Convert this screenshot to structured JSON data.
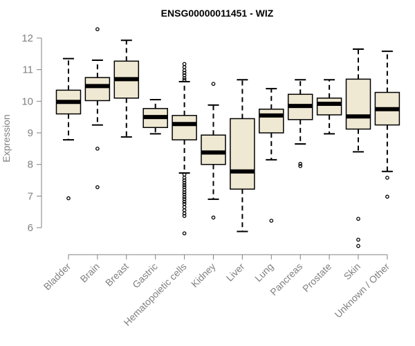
{
  "chart_data": {
    "type": "boxplot",
    "title": "ENSG00000011451 - WIZ",
    "xlabel": "",
    "ylabel": "Expression",
    "ylim": [
      5.5,
      12.4
    ],
    "yticks": [
      6,
      7,
      8,
      9,
      10,
      11,
      12
    ],
    "grid": false,
    "box_color": "#efe8d2",
    "categories": [
      "Bladder",
      "Brain",
      "Breast",
      "Gastric",
      "Hematopoietic cells",
      "Kidney",
      "Liver",
      "Lung",
      "Pancreas",
      "Prostate",
      "Skin",
      "Unknown / Other"
    ],
    "boxes": [
      {
        "category": "Bladder",
        "whisker_low": 8.78,
        "q1": 9.6,
        "median": 9.98,
        "q3": 10.35,
        "whisker_high": 11.35,
        "outliers": [
          6.93
        ]
      },
      {
        "category": "Brain",
        "whisker_low": 9.25,
        "q1": 10.02,
        "median": 10.48,
        "q3": 10.75,
        "whisker_high": 11.3,
        "outliers": [
          12.28,
          8.5,
          7.28
        ]
      },
      {
        "category": "Breast",
        "whisker_low": 8.87,
        "q1": 10.1,
        "median": 10.7,
        "q3": 11.27,
        "whisker_high": 11.93,
        "outliers": []
      },
      {
        "category": "Gastric",
        "whisker_low": 8.97,
        "q1": 9.17,
        "median": 9.5,
        "q3": 9.77,
        "whisker_high": 10.05,
        "outliers": []
      },
      {
        "category": "Hematopoietic cells",
        "whisker_low": 7.73,
        "q1": 8.78,
        "median": 9.28,
        "q3": 9.55,
        "whisker_high": 10.62,
        "outliers": [
          11.18,
          11.08,
          10.98,
          10.9,
          10.82,
          10.73,
          10.67,
          7.68,
          7.58,
          7.5,
          7.42,
          7.35,
          7.28,
          7.2,
          7.12,
          7.05,
          6.97,
          6.9,
          6.82,
          6.75,
          6.65,
          6.55,
          6.45,
          6.37,
          5.82
        ]
      },
      {
        "category": "Kidney",
        "whisker_low": 6.9,
        "q1": 8.0,
        "median": 8.38,
        "q3": 8.93,
        "whisker_high": 9.88,
        "outliers": [
          10.55,
          6.32
        ]
      },
      {
        "category": "Liver",
        "whisker_low": 5.88,
        "q1": 7.22,
        "median": 7.78,
        "q3": 9.45,
        "whisker_high": 10.68,
        "outliers": []
      },
      {
        "category": "Lung",
        "whisker_low": 8.15,
        "q1": 9.0,
        "median": 9.55,
        "q3": 9.75,
        "whisker_high": 10.4,
        "outliers": [
          6.22
        ]
      },
      {
        "category": "Pancreas",
        "whisker_low": 8.65,
        "q1": 9.42,
        "median": 9.85,
        "q3": 10.22,
        "whisker_high": 10.68,
        "outliers": [
          8.02,
          7.95
        ]
      },
      {
        "category": "Prostate",
        "whisker_low": 8.97,
        "q1": 9.57,
        "median": 9.92,
        "q3": 10.1,
        "whisker_high": 10.68,
        "outliers": []
      },
      {
        "category": "Skin",
        "whisker_low": 8.4,
        "q1": 9.12,
        "median": 9.52,
        "q3": 10.7,
        "whisker_high": 11.65,
        "outliers": [
          6.28,
          5.62,
          5.42
        ]
      },
      {
        "category": "Unknown / Other",
        "whisker_low": 7.78,
        "q1": 9.25,
        "median": 9.75,
        "q3": 10.28,
        "whisker_high": 11.58,
        "outliers": [
          7.58,
          6.98
        ]
      }
    ]
  }
}
